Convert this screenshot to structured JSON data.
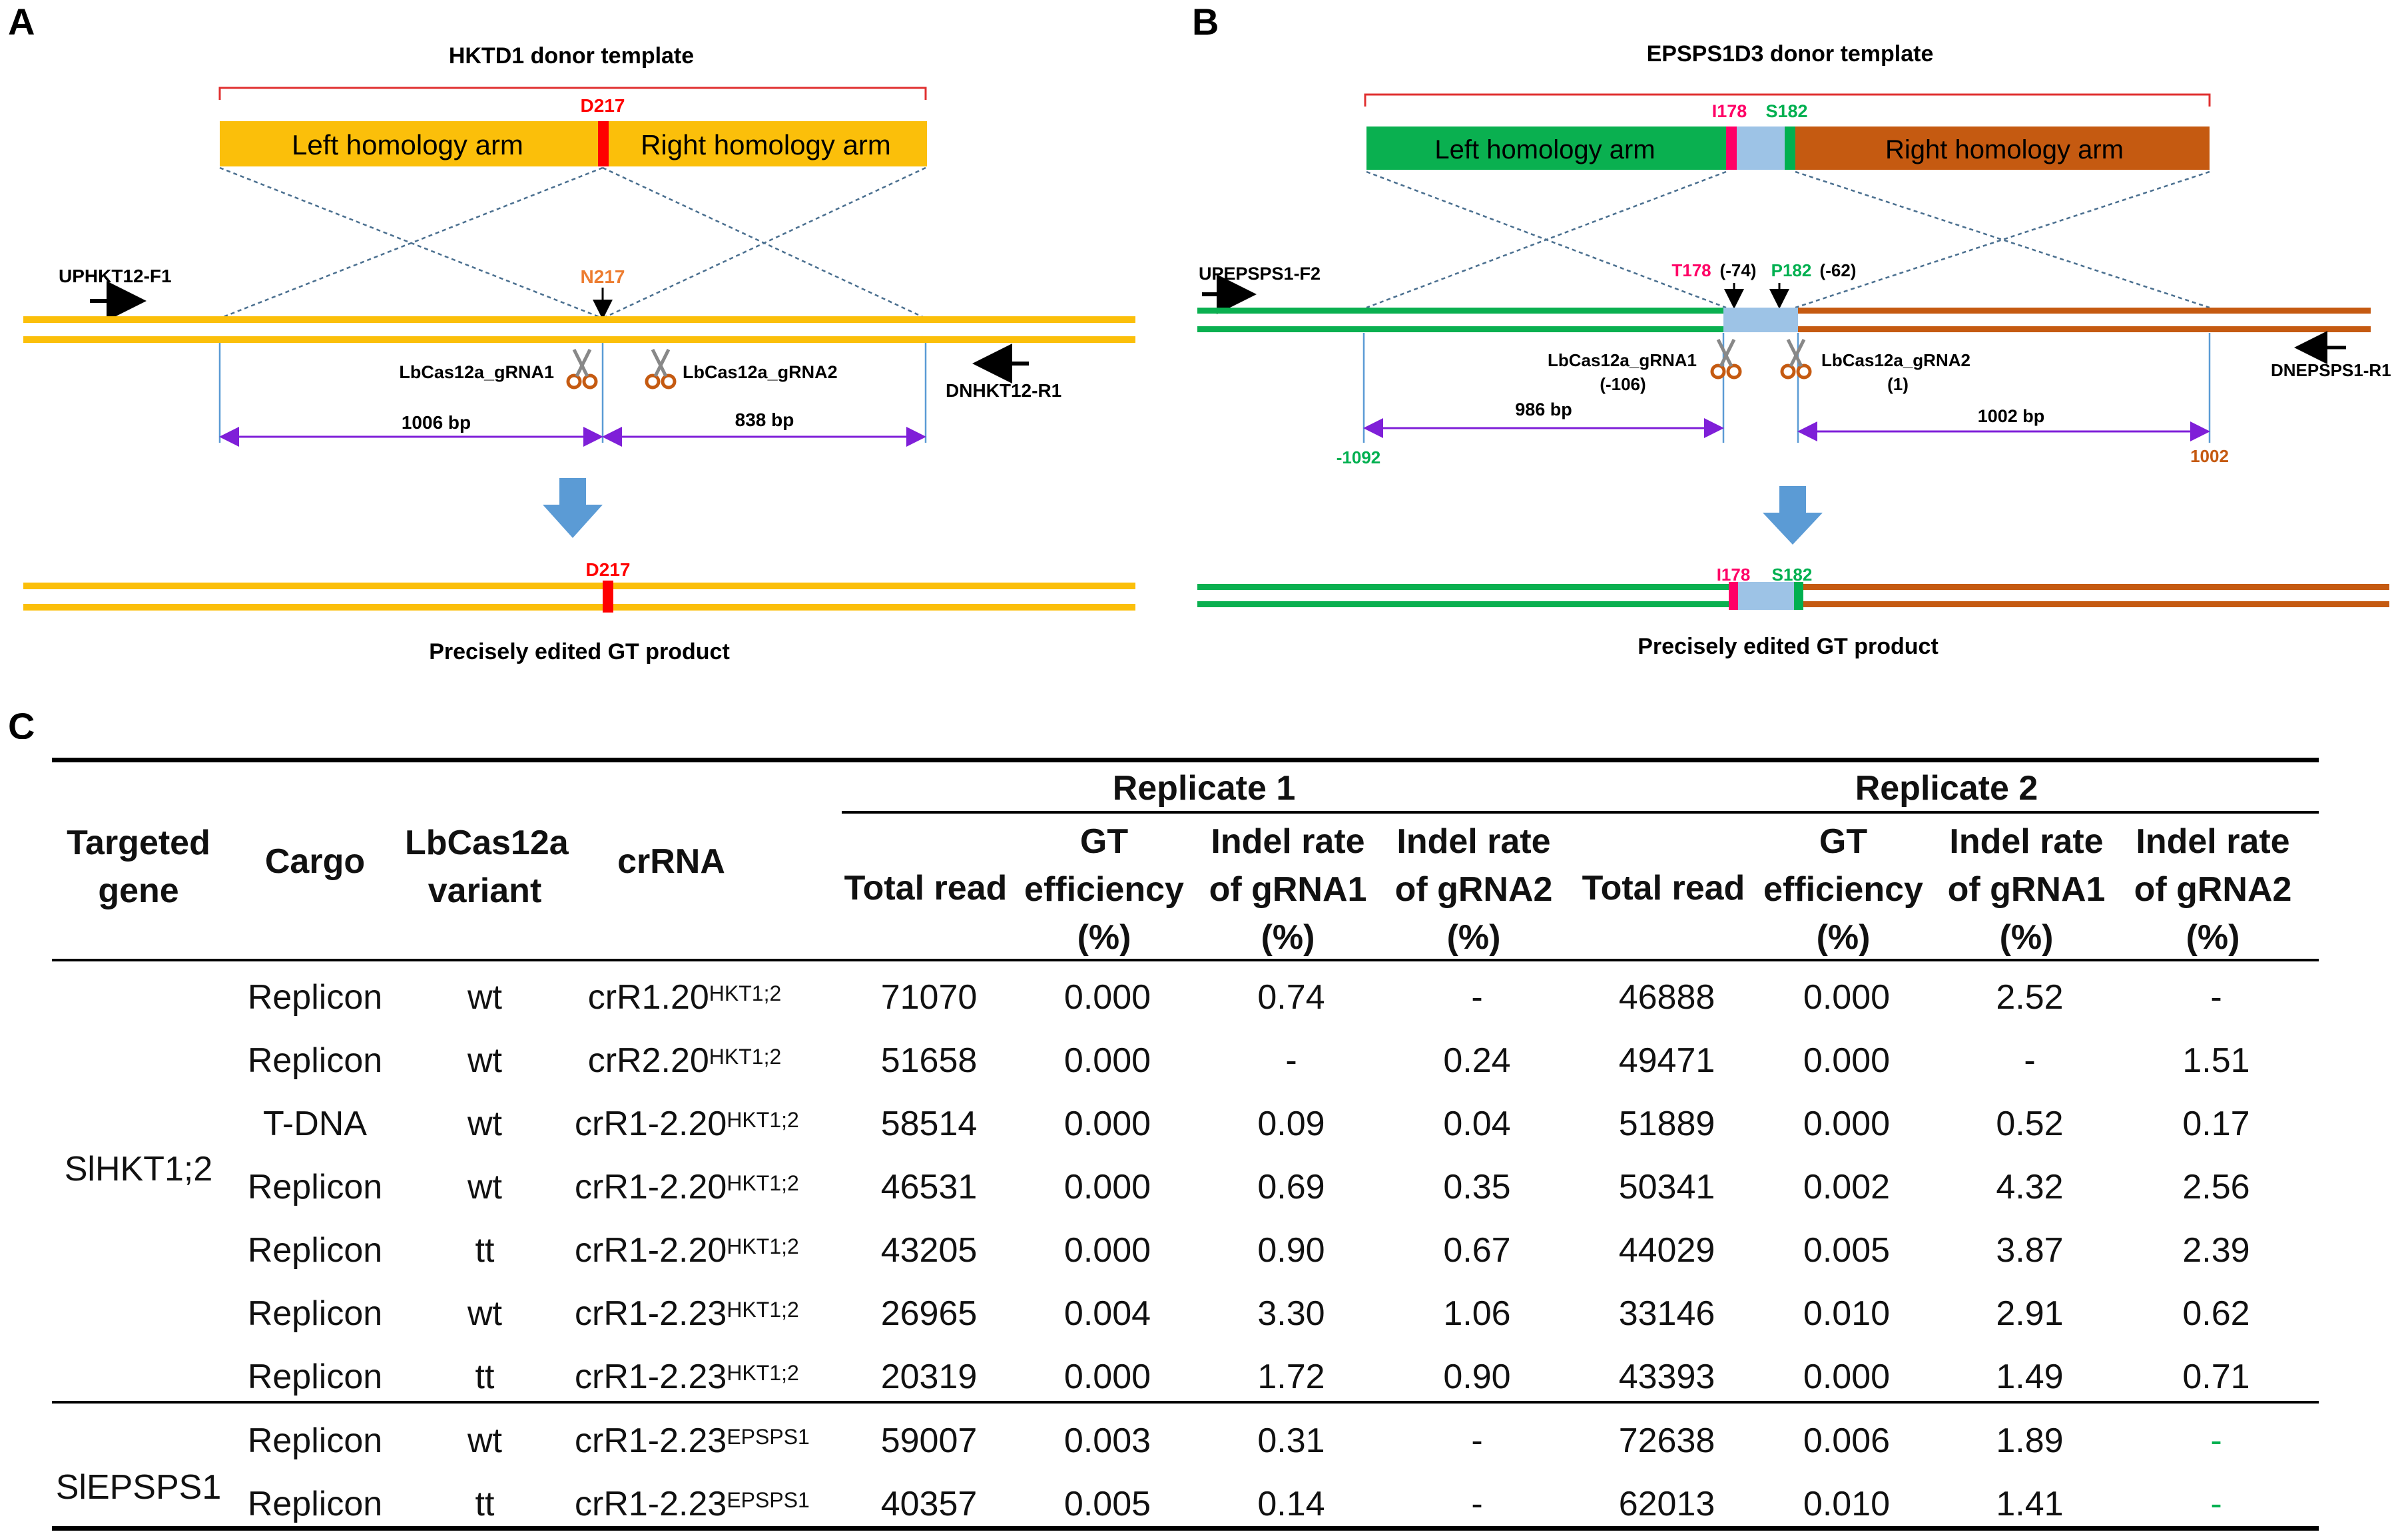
{
  "panel_labels": {
    "a": "A",
    "b": "B",
    "c": "C"
  },
  "panel_a": {
    "donor_title": "HKTD1 donor template",
    "donor_mutation": "D217",
    "left_arm": "Left homology arm",
    "right_arm": "Right homology arm",
    "wt_residue": "N217",
    "primer_f": "UPHKT12-F1",
    "primer_r": "DNHKT12-R1",
    "grna1": "LbCas12a_gRNA1",
    "grna2": "LbCas12a_gRNA2",
    "dist_left": "1006 bp",
    "dist_right": "838 bp",
    "product_mutation": "D217",
    "product_label": "Precisely edited GT product",
    "colors": {
      "strand": "#fbbf0a",
      "mutation": "#ff0000",
      "primer": "#000000",
      "measure": "#7f1fd8",
      "arrow": "#5b9bd5"
    }
  },
  "panel_b": {
    "donor_title": "EPSPS1D3 donor template",
    "mut1": "I178",
    "mut2": "S182",
    "left_arm": "Left homology arm",
    "right_arm": "Right homology arm",
    "primer_f": "UPEPSPS1-F2",
    "primer_r": "DNEPSPS1-R1",
    "wt1": "T178",
    "wt1_pos": "(-74)",
    "wt2": "P182",
    "wt2_pos": "(-62)",
    "grna1": "LbCas12a_gRNA1",
    "grna1_pos": "(-106)",
    "grna2": "LbCas12a_gRNA2",
    "grna2_pos": "(1)",
    "dist_left": "986 bp",
    "dist_right": "1002 bp",
    "coord_left": "-1092",
    "coord_right": "1002",
    "product_mut1": "I178",
    "product_mut2": "S182",
    "product_label": "Precisely edited GT product",
    "colors": {
      "left": "#0ab050",
      "right": "#c55a11",
      "middle": "#9dc3e6",
      "mut1": "#ff0066",
      "mut2": "#00b050"
    }
  },
  "table": {
    "headers": {
      "targeted_gene": "Targeted gene",
      "cargo": "Cargo",
      "variant": "LbCas12a variant",
      "crrna": "crRNA",
      "rep1": "Replicate 1",
      "rep2": "Replicate 2",
      "total_read": "Total read",
      "gt_eff": "GT efficiency (%)",
      "indel1": "Indel rate of gRNA1 (%)",
      "indel2": "Indel rate of gRNA2 (%)"
    },
    "groups": [
      {
        "gene": "SlHKT1;2"
      },
      {
        "gene": "SlEPSPS1"
      }
    ],
    "rows": [
      {
        "cargo": "Replicon",
        "variant": "wt",
        "crrna": "crR1.20",
        "sup": "HKT1;2",
        "r1_total": "71070",
        "r1_gt": "0.000",
        "r1_i1": "0.74",
        "r1_i2": "-",
        "r2_total": "46888",
        "r2_gt": "0.000",
        "r2_i1": "2.52",
        "r2_i2": "-"
      },
      {
        "cargo": "Replicon",
        "variant": "wt",
        "crrna": "crR2.20",
        "sup": "HKT1;2",
        "r1_total": "51658",
        "r1_gt": "0.000",
        "r1_i1": "-",
        "r1_i2": "0.24",
        "r2_total": "49471",
        "r2_gt": "0.000",
        "r2_i1": "-",
        "r2_i2": "1.51"
      },
      {
        "cargo": "T-DNA",
        "variant": "wt",
        "crrna": "crR1-2.20",
        "sup": "HKT1;2",
        "r1_total": "58514",
        "r1_gt": "0.000",
        "r1_i1": "0.09",
        "r1_i2": "0.04",
        "r2_total": "51889",
        "r2_gt": "0.000",
        "r2_i1": "0.52",
        "r2_i2": "0.17"
      },
      {
        "cargo": "Replicon",
        "variant": "wt",
        "crrna": "crR1-2.20",
        "sup": "HKT1;2",
        "r1_total": "46531",
        "r1_gt": "0.000",
        "r1_i1": "0.69",
        "r1_i2": "0.35",
        "r2_total": "50341",
        "r2_gt": "0.002",
        "r2_i1": "4.32",
        "r2_i2": "2.56"
      },
      {
        "cargo": "Replicon",
        "variant": "tt",
        "crrna": "crR1-2.20",
        "sup": "HKT1;2",
        "r1_total": "43205",
        "r1_gt": "0.000",
        "r1_i1": "0.90",
        "r1_i2": "0.67",
        "r2_total": "44029",
        "r2_gt": "0.005",
        "r2_i1": "3.87",
        "r2_i2": "2.39"
      },
      {
        "cargo": "Replicon",
        "variant": "wt",
        "crrna": "crR1-2.23",
        "sup": "HKT1;2",
        "r1_total": "26965",
        "r1_gt": "0.004",
        "r1_i1": "3.30",
        "r1_i2": "1.06",
        "r2_total": "33146",
        "r2_gt": "0.010",
        "r2_i1": "2.91",
        "r2_i2": "0.62"
      },
      {
        "cargo": "Replicon",
        "variant": "tt",
        "crrna": "crR1-2.23",
        "sup": "HKT1;2",
        "r1_total": "20319",
        "r1_gt": "0.000",
        "r1_i1": "1.72",
        "r1_i2": "0.90",
        "r2_total": "43393",
        "r2_gt": "0.000",
        "r2_i1": "1.49",
        "r2_i2": "0.71"
      },
      {
        "cargo": "Replicon",
        "variant": "wt",
        "crrna": "crR1-2.23",
        "sup": "EPSPS1",
        "r1_total": "59007",
        "r1_gt": "0.003",
        "r1_i1": "0.31",
        "r1_i2": "-",
        "r2_total": "72638",
        "r2_gt": "0.006",
        "r2_i1": "1.89",
        "r2_i2": "-"
      },
      {
        "cargo": "Replicon",
        "variant": "tt",
        "crrna": "crR1-2.23",
        "sup": "EPSPS1",
        "r1_total": "40357",
        "r1_gt": "0.005",
        "r1_i1": "0.14",
        "r1_i2": "-",
        "r2_total": "62013",
        "r2_gt": "0.010",
        "r2_i1": "1.41",
        "r2_i2": "-"
      }
    ],
    "colors": {
      "green_dash": "#00b050"
    }
  }
}
